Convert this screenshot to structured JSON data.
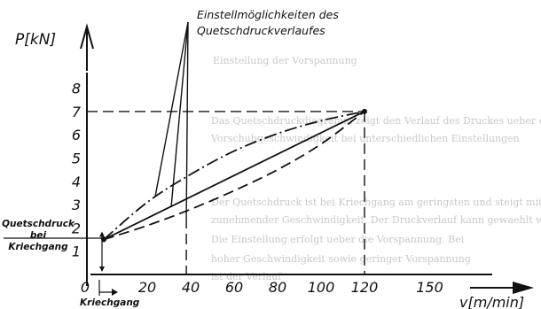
{
  "bg_text": [
    "Einstellung der Vorspannung",
    "Das Quetschdruckdiagramm zeigt den Verlauf des Druckes ueber die",
    "Vorschubgeschwindigkeit bei unterschiedlichen Einstellungen",
    "Der Quetschdruck ist bei Kriechgang am geringsten und steigt mit",
    "zunehmender Geschwindigkeit. Der Druckverlauf kann gewaehlt werden",
    "Die Einstellung erfolgt ueber die Vorspannung. Bei",
    "hoher Geschwindigkeit sowie geringer Vorspannung",
    "ist der Verlauf"
  ],
  "chart_data": {
    "type": "line",
    "title": "",
    "xlabel": "v[m/min]",
    "ylabel": "P[kN]",
    "xlim": [
      0,
      180
    ],
    "ylim": [
      0,
      10
    ],
    "x_ticks": [
      "0",
      "20",
      "40",
      "60",
      "80",
      "100",
      "120",
      "150"
    ],
    "y_ticks": [
      "1",
      "2",
      "3",
      "4",
      "5",
      "6",
      "7",
      "8"
    ],
    "start_point": {
      "x": 0,
      "y": 1.5
    },
    "end_point": {
      "x": 120,
      "y": 7
    },
    "series": [
      {
        "style": "solid",
        "x": [
          0,
          120
        ],
        "y": [
          1.5,
          7
        ]
      },
      {
        "style": "dash-dot",
        "x": [
          0,
          20,
          40,
          60,
          80,
          100,
          120
        ],
        "y": [
          1.5,
          3.1,
          4.3,
          5.3,
          6.05,
          6.6,
          7
        ]
      },
      {
        "style": "dashed",
        "x": [
          0,
          20,
          40,
          60,
          80,
          100,
          120
        ],
        "y": [
          1.5,
          2.1,
          2.8,
          3.6,
          4.5,
          5.6,
          7
        ]
      }
    ],
    "reference_lines": [
      {
        "orientation": "horizontal",
        "y": 7,
        "x_from": 0,
        "x_to": 120
      },
      {
        "orientation": "vertical",
        "x": 120,
        "y_from": 0,
        "y_to": 7
      }
    ],
    "annotations": {
      "settings": "Einstellmöglichkeiten des Quetschdruckverlaufes",
      "settings_leader_x": 38,
      "quetsch_line1": "Quetschdruck",
      "quetsch_line2": "bei",
      "quetsch_line3": "Kriechgang",
      "kriechgang": "Kriechgang"
    }
  }
}
